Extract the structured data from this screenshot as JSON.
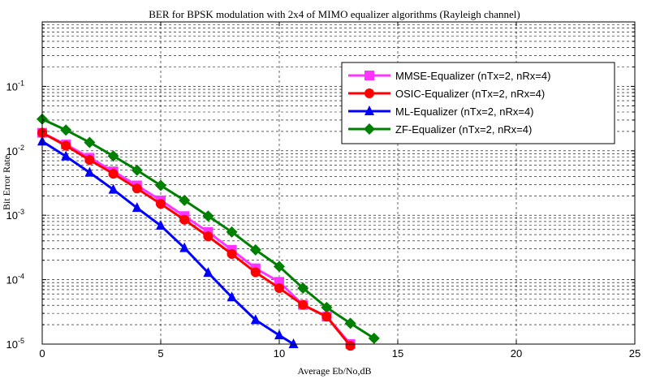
{
  "chart_data": {
    "type": "line",
    "title": "BER for BPSK modulation with 2x4 of MIMO equalizer algorithms (Rayleigh channel)",
    "xlabel": "Average Eb/No,dB",
    "ylabel": "Bit Error Rate",
    "xlim": [
      0,
      25
    ],
    "ylim": [
      1e-05,
      1
    ],
    "yscale": "log",
    "grid": true,
    "legend_position": "top-right",
    "x_ticks": [
      "0",
      "5",
      "10",
      "15",
      "20",
      "25"
    ],
    "y_ticks": [
      {
        "base": "10",
        "exp": "-1",
        "value": 0.1
      },
      {
        "base": "10",
        "exp": "-2",
        "value": 0.01
      },
      {
        "base": "10",
        "exp": "-3",
        "value": 0.001
      },
      {
        "base": "10",
        "exp": "-4",
        "value": 0.0001
      },
      {
        "base": "10",
        "exp": "-5",
        "value": 1e-05
      }
    ],
    "series": [
      {
        "name": "MMSE-Equalizer (nTx=2, nRx=4)",
        "color": "#ff33ff",
        "marker": "square",
        "x": [
          0,
          1,
          2,
          3,
          4,
          5,
          6,
          7,
          8,
          9,
          10,
          11,
          12,
          13
        ],
        "y": [
          0.019,
          0.0125,
          0.0078,
          0.0048,
          0.0029,
          0.0017,
          0.00097,
          0.00055,
          0.00029,
          0.00015,
          9.25e-05,
          4.06e-05,
          2.67e-05,
          1e-05
        ]
      },
      {
        "name": "OSIC-Equalizer (nTx=2, nRx=4)",
        "color": "#ff0000",
        "marker": "circle",
        "x": [
          0,
          1,
          2,
          3,
          4,
          5,
          6,
          7,
          8,
          9,
          10,
          11,
          12,
          13
        ],
        "y": [
          0.019,
          0.012,
          0.0072,
          0.0044,
          0.0026,
          0.0015,
          0.00085,
          0.00047,
          0.00025,
          0.00013,
          7.4e-05,
          4.06e-05,
          2.67e-05,
          9.4e-06
        ]
      },
      {
        "name": "ML-Equalizer (nTx=2, nRx=4)",
        "color": "#0000ff",
        "marker": "triangle",
        "x": [
          0,
          1,
          2,
          3,
          4,
          5,
          6,
          7,
          8,
          9,
          10,
          10.6
        ],
        "y": [
          0.014,
          0.0082,
          0.0046,
          0.0025,
          0.0013,
          0.00069,
          0.00031,
          0.000128,
          5.34e-05,
          2.37e-05,
          1.37e-05,
          1e-05
        ]
      },
      {
        "name": "ZF-Equalizer (nTx=2, nRx=4)",
        "color": "#008000",
        "marker": "diamond",
        "x": [
          0,
          1,
          2,
          3,
          4,
          5,
          6,
          7,
          8,
          9,
          10,
          11,
          12,
          13,
          14
        ],
        "y": [
          0.031,
          0.021,
          0.0135,
          0.0083,
          0.005,
          0.0029,
          0.0017,
          0.00097,
          0.00055,
          0.00029,
          0.00016,
          7.4e-05,
          3.7e-05,
          2.1e-05,
          1.23e-05
        ]
      }
    ]
  }
}
